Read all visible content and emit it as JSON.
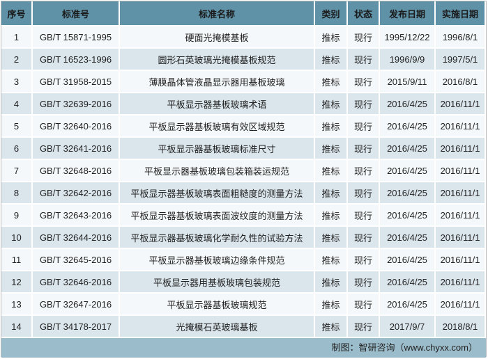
{
  "headers": [
    "序号",
    "标准号",
    "标准名称",
    "类别",
    "状态",
    "发布日期",
    "实施日期"
  ],
  "rows": [
    [
      "1",
      "GB/T 15871-1995",
      "硬面光掩模基板",
      "推标",
      "现行",
      "1995/12/22",
      "1996/8/1"
    ],
    [
      "2",
      "GB/T 16523-1996",
      "圆形石英玻璃光掩模基板规范",
      "推标",
      "现行",
      "1996/9/9",
      "1997/5/1"
    ],
    [
      "3",
      "GB/T 31958-2015",
      "薄膜晶体管液晶显示器用基板玻璃",
      "推标",
      "现行",
      "2015/9/11",
      "2016/8/1"
    ],
    [
      "4",
      "GB/T 32639-2016",
      "平板显示器基板玻璃术语",
      "推标",
      "现行",
      "2016/4/25",
      "2016/11/1"
    ],
    [
      "5",
      "GB/T 32640-2016",
      "平板显示器基板玻璃有效区域规范",
      "推标",
      "现行",
      "2016/4/25",
      "2016/11/1"
    ],
    [
      "6",
      "GB/T 32641-2016",
      "平板显示器基板玻璃标准尺寸",
      "推标",
      "现行",
      "2016/4/25",
      "2016/11/1"
    ],
    [
      "7",
      "GB/T 32648-2016",
      "平板显示器基板玻璃包装箱装运规范",
      "推标",
      "现行",
      "2016/4/25",
      "2016/11/1"
    ],
    [
      "8",
      "GB/T 32642-2016",
      "平板显示器基板玻璃表面粗糙度的测量方法",
      "推标",
      "现行",
      "2016/4/25",
      "2016/11/1"
    ],
    [
      "9",
      "GB/T 32643-2016",
      "平板显示器基板玻璃表面波纹度的测量方法",
      "推标",
      "现行",
      "2016/4/25",
      "2016/11/1"
    ],
    [
      "10",
      "GB/T 32644-2016",
      "平板显示器基板玻璃化学耐久性的试验方法",
      "推标",
      "现行",
      "2016/4/25",
      "2016/11/1"
    ],
    [
      "11",
      "GB/T 32645-2016",
      "平板显示器基板玻璃边缘条件规范",
      "推标",
      "现行",
      "2016/4/25",
      "2016/11/1"
    ],
    [
      "12",
      "GB/T 32646-2016",
      "平板显示器用基板玻璃包装规范",
      "推标",
      "现行",
      "2016/4/25",
      "2016/11/1"
    ],
    [
      "13",
      "GB/T 32647-2016",
      "平板显示器基板玻璃规范",
      "推标",
      "现行",
      "2016/4/25",
      "2016/11/1"
    ],
    [
      "14",
      "GB/T 34178-2017",
      "光掩模石英玻璃基板",
      "推标",
      "现行",
      "2017/9/7",
      "2018/8/1"
    ]
  ],
  "footer": "制图：智研咨询（www.chyxx.com）",
  "colors": {
    "header": "#5f91a7",
    "row_light": "#f4f8fa",
    "row_dark": "#dbe6ec",
    "footer": "#9bbccb"
  }
}
